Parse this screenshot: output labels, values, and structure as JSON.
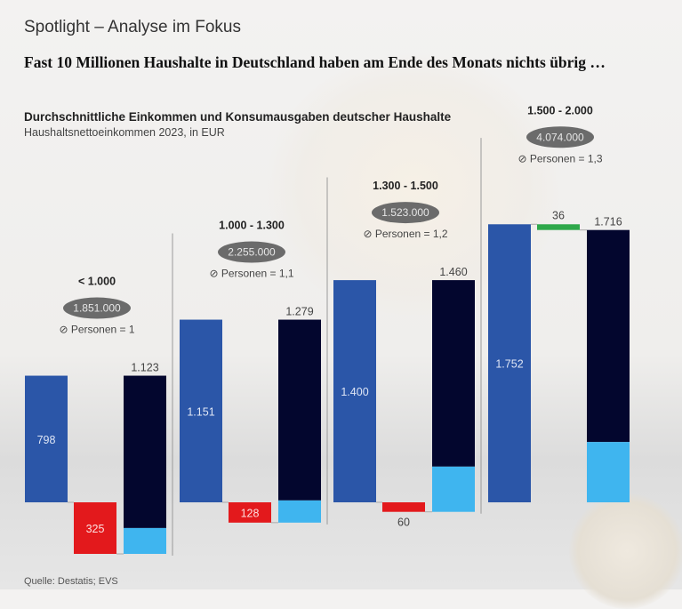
{
  "kicker": "Spotlight – Analyse im Fokus",
  "headline": "Fast 10 Millionen Haushalte in Deutschland haben am Ende des Monats nichts übrig …",
  "source": "Quelle: Destatis; EVS",
  "colors": {
    "income": "#2b56a8",
    "deficit": "#e3191c",
    "surplus": "#2ea84a",
    "expenses": "#03062e",
    "expenses_part": "#3fb5ef",
    "pill": "#6b6b6b"
  },
  "chart_data": {
    "type": "bar",
    "subtype": "waterfall",
    "title": "Durchschnittliche Einkommen und Konsumausgaben deutscher Haushalte",
    "subtitle": "Haushaltsnettoeinkommen 2023, in EUR",
    "groups": [
      {
        "label": "< 1.000",
        "households": "1.851.000",
        "persons": "⊘ Personen = 1",
        "income": 798,
        "income_label": "798",
        "balance": -325,
        "balance_label": "325",
        "expenses": 1123,
        "expenses_label": "1.123",
        "expenses_part_est": 163
      },
      {
        "label": "1.000 - 1.300",
        "households": "2.255.000",
        "persons": "⊘ Personen = 1,1",
        "income": 1151,
        "income_label": "1.151",
        "balance": -128,
        "balance_label": "128",
        "expenses": 1279,
        "expenses_label": "1.279",
        "expenses_part_est": 140
      },
      {
        "label": "1.300 - 1.500",
        "households": "1.523.000",
        "persons": "⊘ Personen = 1,2",
        "income": 1400,
        "income_label": "1.400",
        "balance": -60,
        "balance_label": "60",
        "expenses": 1460,
        "expenses_label": "1.460",
        "expenses_part_est": 285
      },
      {
        "label": "1.500 - 2.000",
        "households": "4.074.000",
        "persons": "⊘ Personen = 1,3",
        "income": 1752,
        "income_label": "1.752",
        "balance": 36,
        "balance_label": "36",
        "expenses": 1716,
        "expenses_label": "1.716",
        "expenses_part_est": 380
      }
    ]
  }
}
